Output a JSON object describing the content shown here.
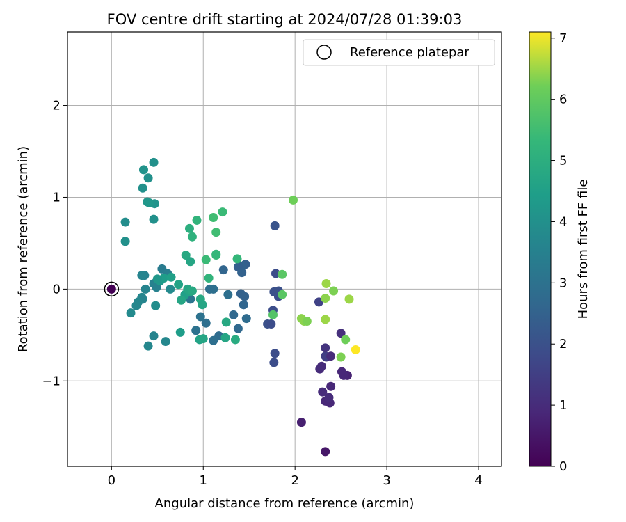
{
  "chart_data": {
    "type": "scatter",
    "title": "FOV centre drift starting at 2024/07/28 01:39:03",
    "xlabel": "Angular distance from reference (arcmin)",
    "ylabel": "Rotation from reference (arcmin)",
    "xlim": [
      -0.48,
      4.25
    ],
    "ylim": [
      -1.93,
      2.8
    ],
    "x_ticks": [
      0,
      1,
      2,
      3,
      4
    ],
    "x_tick_labels": [
      "0",
      "1",
      "2",
      "3",
      "4"
    ],
    "y_ticks": [
      -1,
      0,
      1,
      2
    ],
    "y_tick_labels": [
      "−1",
      "0",
      "1",
      "2"
    ],
    "grid": true,
    "legend": {
      "position": "top-right",
      "entries": [
        "Reference platepar"
      ]
    },
    "colorbar": {
      "label": "Hours from first FF file",
      "colormap": "viridis",
      "range": [
        0,
        7.1
      ],
      "ticks": [
        0,
        1,
        2,
        3,
        4,
        5,
        6,
        7
      ],
      "tick_labels": [
        "0",
        "1",
        "2",
        "3",
        "4",
        "5",
        "6",
        "7"
      ]
    },
    "reference_point": {
      "x": 0,
      "y": 0,
      "hours": 0
    },
    "points": [
      {
        "x": 2.33,
        "y": -1.77,
        "hours": 0.5
      },
      {
        "x": 2.07,
        "y": -1.45,
        "hours": 0.7
      },
      {
        "x": 2.38,
        "y": -1.24,
        "hours": 0.9
      },
      {
        "x": 2.33,
        "y": -1.22,
        "hours": 0.9
      },
      {
        "x": 2.37,
        "y": -1.18,
        "hours": 1.0
      },
      {
        "x": 2.3,
        "y": -1.12,
        "hours": 1.0
      },
      {
        "x": 2.39,
        "y": -1.06,
        "hours": 0.9
      },
      {
        "x": 2.57,
        "y": -0.94,
        "hours": 0.8
      },
      {
        "x": 2.53,
        "y": -0.94,
        "hours": 0.9
      },
      {
        "x": 2.51,
        "y": -0.9,
        "hours": 0.9
      },
      {
        "x": 2.27,
        "y": -0.87,
        "hours": 1.0
      },
      {
        "x": 2.29,
        "y": -0.84,
        "hours": 1.0
      },
      {
        "x": 2.34,
        "y": -0.74,
        "hours": 1.3
      },
      {
        "x": 2.33,
        "y": -0.73,
        "hours": 1.5
      },
      {
        "x": 2.39,
        "y": -0.73,
        "hours": 1.0
      },
      {
        "x": 2.33,
        "y": -0.64,
        "hours": 1.2
      },
      {
        "x": 2.5,
        "y": -0.48,
        "hours": 1.1
      },
      {
        "x": 2.26,
        "y": -0.14,
        "hours": 1.6
      },
      {
        "x": 1.77,
        "y": -0.8,
        "hours": 1.9
      },
      {
        "x": 1.78,
        "y": -0.7,
        "hours": 1.9
      },
      {
        "x": 1.7,
        "y": -0.38,
        "hours": 2.0
      },
      {
        "x": 1.74,
        "y": -0.38,
        "hours": 1.9
      },
      {
        "x": 1.76,
        "y": -0.23,
        "hours": 1.9
      },
      {
        "x": 1.82,
        "y": -0.08,
        "hours": 1.9
      },
      {
        "x": 1.77,
        "y": -0.03,
        "hours": 2.0
      },
      {
        "x": 1.82,
        "y": -0.02,
        "hours": 2.0
      },
      {
        "x": 1.79,
        "y": 0.17,
        "hours": 1.9
      },
      {
        "x": 1.78,
        "y": 0.69,
        "hours": 2.1
      },
      {
        "x": 1.46,
        "y": 0.27,
        "hours": 2.4
      },
      {
        "x": 1.42,
        "y": 0.25,
        "hours": 2.5
      },
      {
        "x": 1.38,
        "y": 0.24,
        "hours": 2.4
      },
      {
        "x": 1.42,
        "y": 0.18,
        "hours": 2.5
      },
      {
        "x": 1.22,
        "y": 0.21,
        "hours": 2.6
      },
      {
        "x": 1.41,
        "y": -0.05,
        "hours": 2.5
      },
      {
        "x": 1.45,
        "y": -0.08,
        "hours": 2.5
      },
      {
        "x": 1.44,
        "y": -0.17,
        "hours": 2.6
      },
      {
        "x": 1.33,
        "y": -0.28,
        "hours": 2.7
      },
      {
        "x": 1.47,
        "y": -0.32,
        "hours": 2.8
      },
      {
        "x": 1.38,
        "y": -0.43,
        "hours": 2.7
      },
      {
        "x": 1.27,
        "y": -0.06,
        "hours": 2.9
      },
      {
        "x": 1.11,
        "y": 0.0,
        "hours": 2.9
      },
      {
        "x": 1.07,
        "y": 0.0,
        "hours": 2.9
      },
      {
        "x": 0.97,
        "y": -0.3,
        "hours": 3.0
      },
      {
        "x": 1.03,
        "y": -0.37,
        "hours": 2.9
      },
      {
        "x": 0.92,
        "y": -0.45,
        "hours": 3.0
      },
      {
        "x": 1.17,
        "y": -0.51,
        "hours": 2.8
      },
      {
        "x": 1.11,
        "y": -0.56,
        "hours": 2.9
      },
      {
        "x": 0.86,
        "y": -0.11,
        "hours": 3.1
      },
      {
        "x": 0.55,
        "y": 0.22,
        "hours": 3.3
      },
      {
        "x": 0.61,
        "y": 0.17,
        "hours": 3.4
      },
      {
        "x": 0.49,
        "y": 0.02,
        "hours": 3.5
      },
      {
        "x": 0.46,
        "y": 0.06,
        "hours": 3.5
      },
      {
        "x": 0.36,
        "y": 0.15,
        "hours": 3.5
      },
      {
        "x": 0.33,
        "y": 0.15,
        "hours": 3.6
      },
      {
        "x": 0.37,
        "y": 0.0,
        "hours": 3.6
      },
      {
        "x": 0.33,
        "y": -0.09,
        "hours": 3.7
      },
      {
        "x": 0.34,
        "y": -0.11,
        "hours": 3.6
      },
      {
        "x": 0.29,
        "y": -0.14,
        "hours": 3.7
      },
      {
        "x": 0.27,
        "y": -0.18,
        "hours": 3.7
      },
      {
        "x": 0.21,
        "y": -0.26,
        "hours": 3.8
      },
      {
        "x": 0.46,
        "y": -0.51,
        "hours": 3.6
      },
      {
        "x": 0.4,
        "y": -0.62,
        "hours": 3.7
      },
      {
        "x": 0.59,
        "y": -0.57,
        "hours": 3.7
      },
      {
        "x": 0.64,
        "y": 0.0,
        "hours": 3.8
      },
      {
        "x": 0.48,
        "y": -0.18,
        "hours": 3.9
      },
      {
        "x": 0.15,
        "y": 0.73,
        "hours": 3.9
      },
      {
        "x": 0.15,
        "y": 0.52,
        "hours": 4.0
      },
      {
        "x": 0.46,
        "y": 0.76,
        "hours": 4.0
      },
      {
        "x": 0.47,
        "y": 0.93,
        "hours": 4.1
      },
      {
        "x": 0.39,
        "y": 0.95,
        "hours": 4.2
      },
      {
        "x": 0.41,
        "y": 0.94,
        "hours": 4.2
      },
      {
        "x": 0.34,
        "y": 1.1,
        "hours": 4.0
      },
      {
        "x": 0.35,
        "y": 1.3,
        "hours": 4.1
      },
      {
        "x": 0.4,
        "y": 1.21,
        "hours": 4.0
      },
      {
        "x": 0.46,
        "y": 1.38,
        "hours": 4.0
      },
      {
        "x": 0.53,
        "y": 0.09,
        "hours": 4.3
      },
      {
        "x": 0.57,
        "y": 0.12,
        "hours": 4.4
      },
      {
        "x": 0.5,
        "y": 0.11,
        "hours": 4.2
      },
      {
        "x": 0.65,
        "y": 0.13,
        "hours": 4.5
      },
      {
        "x": 0.73,
        "y": 0.05,
        "hours": 4.6
      },
      {
        "x": 0.8,
        "y": -0.06,
        "hours": 4.5
      },
      {
        "x": 0.85,
        "y": -0.03,
        "hours": 4.6
      },
      {
        "x": 0.83,
        "y": 0.0,
        "hours": 4.7
      },
      {
        "x": 0.88,
        "y": -0.02,
        "hours": 4.8
      },
      {
        "x": 0.76,
        "y": -0.12,
        "hours": 4.7
      },
      {
        "x": 0.97,
        "y": -0.11,
        "hours": 4.8
      },
      {
        "x": 0.99,
        "y": -0.17,
        "hours": 4.7
      },
      {
        "x": 0.75,
        "y": -0.47,
        "hours": 4.4
      },
      {
        "x": 0.96,
        "y": -0.55,
        "hours": 4.6
      },
      {
        "x": 1.0,
        "y": -0.54,
        "hours": 4.7
      },
      {
        "x": 1.25,
        "y": -0.36,
        "hours": 4.8
      },
      {
        "x": 1.24,
        "y": -0.53,
        "hours": 4.7
      },
      {
        "x": 1.35,
        "y": -0.55,
        "hours": 4.9
      },
      {
        "x": 0.81,
        "y": 0.37,
        "hours": 4.8
      },
      {
        "x": 0.86,
        "y": 0.3,
        "hours": 4.7
      },
      {
        "x": 0.85,
        "y": 0.66,
        "hours": 5.0
      },
      {
        "x": 0.88,
        "y": 0.57,
        "hours": 5.1
      },
      {
        "x": 0.93,
        "y": 0.75,
        "hours": 5.2
      },
      {
        "x": 1.06,
        "y": 0.12,
        "hours": 5.2
      },
      {
        "x": 1.03,
        "y": 0.32,
        "hours": 5.4
      },
      {
        "x": 1.14,
        "y": 0.37,
        "hours": 5.4
      },
      {
        "x": 1.14,
        "y": 0.38,
        "hours": 5.3
      },
      {
        "x": 1.14,
        "y": 0.62,
        "hours": 5.5
      },
      {
        "x": 1.11,
        "y": 0.78,
        "hours": 5.5
      },
      {
        "x": 1.21,
        "y": 0.84,
        "hours": 5.4
      },
      {
        "x": 1.37,
        "y": 0.33,
        "hours": 5.3
      },
      {
        "x": 1.76,
        "y": -0.28,
        "hours": 5.8
      },
      {
        "x": 1.86,
        "y": 0.16,
        "hours": 5.9
      },
      {
        "x": 1.86,
        "y": -0.06,
        "hours": 5.9
      },
      {
        "x": 1.98,
        "y": 0.97,
        "hours": 6.2
      },
      {
        "x": 2.07,
        "y": -0.32,
        "hours": 6.4
      },
      {
        "x": 2.1,
        "y": -0.35,
        "hours": 6.4
      },
      {
        "x": 2.13,
        "y": -0.35,
        "hours": 6.3
      },
      {
        "x": 2.34,
        "y": 0.06,
        "hours": 6.5
      },
      {
        "x": 2.33,
        "y": -0.1,
        "hours": 6.4
      },
      {
        "x": 2.42,
        "y": -0.02,
        "hours": 6.3
      },
      {
        "x": 2.33,
        "y": -0.33,
        "hours": 6.5
      },
      {
        "x": 2.59,
        "y": -0.11,
        "hours": 6.5
      },
      {
        "x": 2.55,
        "y": -0.55,
        "hours": 6.2
      },
      {
        "x": 2.5,
        "y": -0.74,
        "hours": 6.3
      },
      {
        "x": 2.66,
        "y": -0.66,
        "hours": 7.1
      }
    ]
  }
}
